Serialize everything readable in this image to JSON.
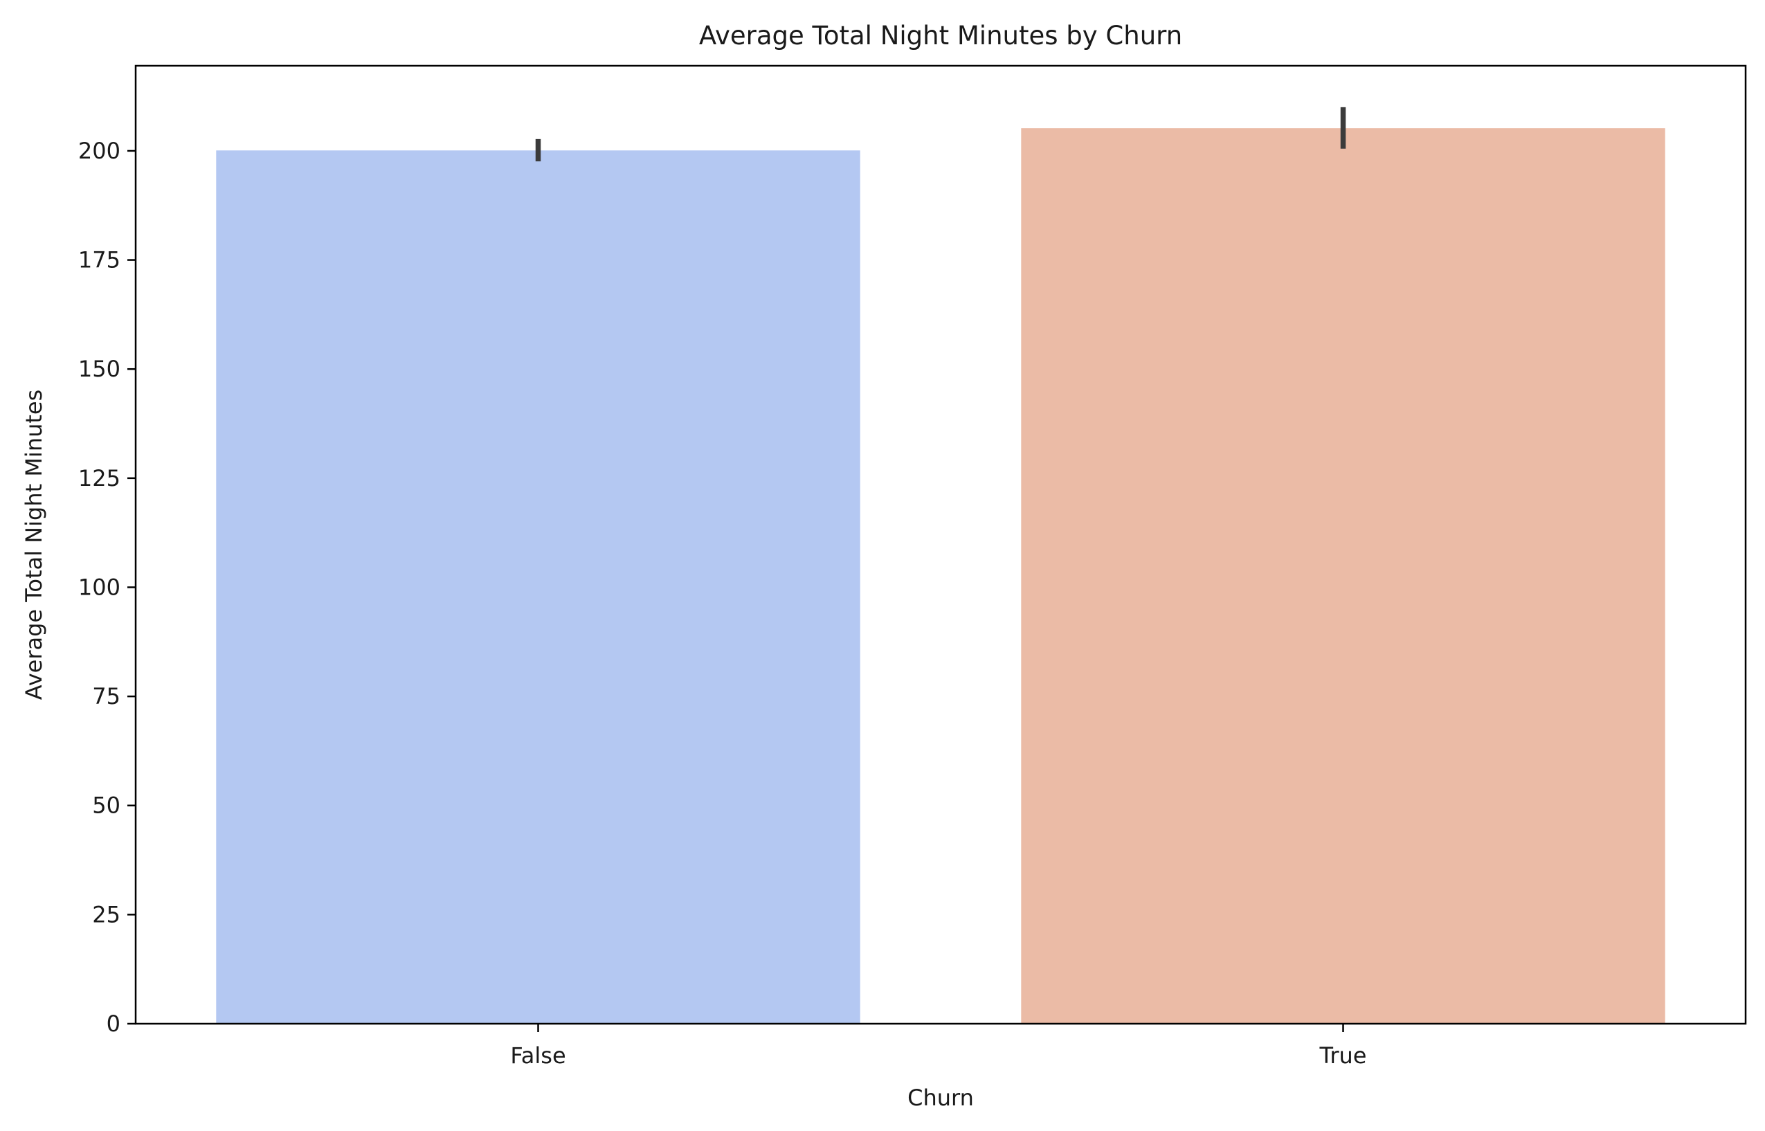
{
  "chart_data": {
    "type": "bar",
    "title": "Average Total Night Minutes by Churn",
    "xlabel": "Churn",
    "ylabel": "Average Total Night Minutes",
    "categories": [
      "False",
      "True"
    ],
    "values": [
      200.1,
      205.2
    ],
    "error_bars": [
      {
        "low": 197.6,
        "high": 202.7
      },
      {
        "low": 200.5,
        "high": 210.0
      }
    ],
    "colors": [
      "#b4c8f2",
      "#ebbba6"
    ],
    "error_bar_color": "#3b3b3b",
    "ylim": [
      0,
      219.5
    ],
    "yticks": [
      0,
      25,
      50,
      75,
      100,
      125,
      150,
      175,
      200
    ],
    "grid": false,
    "legend": "none"
  }
}
